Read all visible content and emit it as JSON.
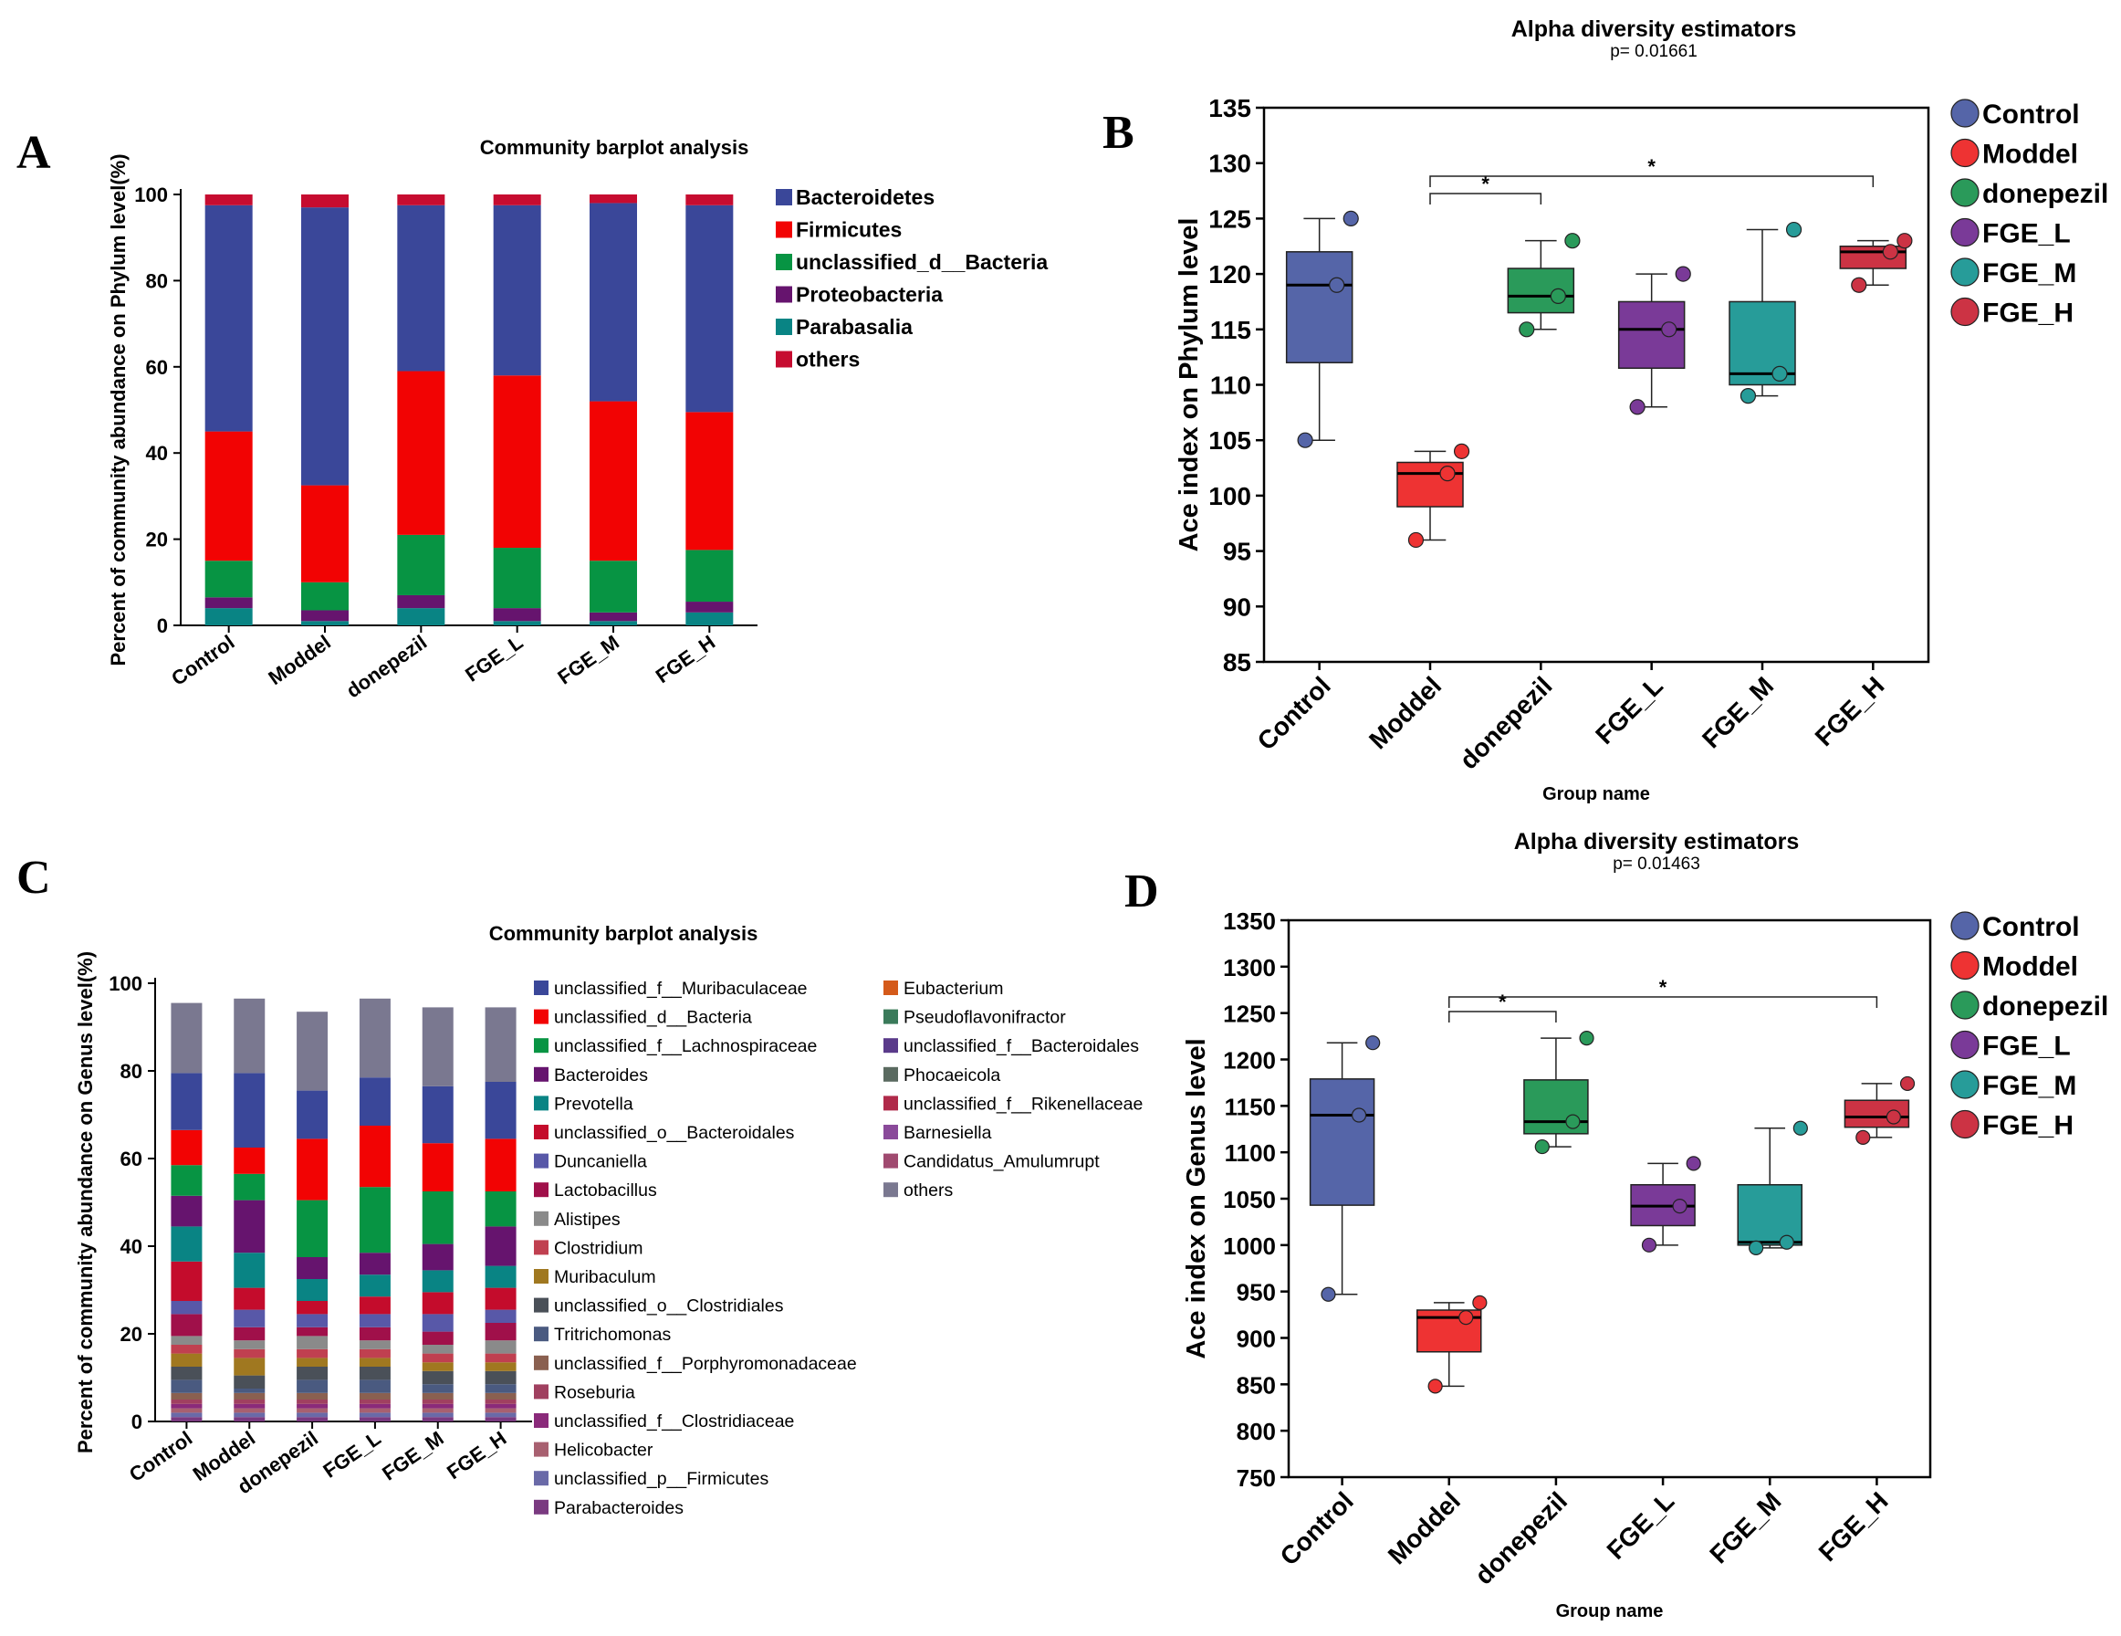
{
  "panels": {
    "A": {
      "letter": "A",
      "chart_data": {
        "type": "bar",
        "stacked": true,
        "title": "Community barplot analysis",
        "xlabel": "",
        "ylabel": "Percent of community abundance on Phylum level(%)",
        "ylim": [
          0,
          100
        ],
        "yticks": [
          "0",
          "20",
          "40",
          "60",
          "80",
          "100"
        ],
        "categories": [
          "Control",
          "Moddel",
          "donepezil",
          "FGE_L",
          "FGE_M",
          "FGE_H"
        ],
        "series": [
          {
            "name": "Parabasalia",
            "color": "#098484",
            "values": [
              4,
              1,
              4,
              1,
              1,
              3
            ]
          },
          {
            "name": "Proteobacteria",
            "color": "#66146e",
            "values": [
              2.5,
              2.5,
              3,
              3,
              2,
              2.5
            ]
          },
          {
            "name": "unclassified_d__Bacteria",
            "color": "#079443",
            "values": [
              8.5,
              6.5,
              14,
              14,
              12,
              12
            ]
          },
          {
            "name": "Firmicutes",
            "color": "#f20303",
            "values": [
              30,
              22.5,
              38,
              40,
              37,
              32
            ]
          },
          {
            "name": "Bacteroidetes",
            "color": "#3a4799",
            "values": [
              52.5,
              64.5,
              38.5,
              39.5,
              46,
              48
            ]
          },
          {
            "name": "others",
            "color": "#c60c30",
            "values": [
              2.5,
              3,
              2.5,
              2.5,
              2,
              2.5
            ]
          }
        ],
        "legend": [
          "Bacteroidetes",
          "Firmicutes",
          "unclassified_d__Bacteria",
          "Proteobacteria",
          "Parabasalia",
          "others"
        ],
        "legend_position": "right"
      }
    },
    "B": {
      "letter": "B",
      "chart_data": {
        "type": "box",
        "title": "Alpha diversity estimators",
        "subtitle": "p= 0.01661",
        "xlabel": "Group name",
        "ylabel": "Ace index on Phylum level",
        "ylim": [
          85,
          135
        ],
        "yticks": [
          "85",
          "90",
          "95",
          "100",
          "105",
          "110",
          "115",
          "120",
          "125",
          "130",
          "135"
        ],
        "categories": [
          "Control",
          "Moddel",
          "donepezil",
          "FGE_L",
          "FGE_M",
          "FGE_H"
        ],
        "boxes": [
          {
            "name": "Control",
            "color": "#5565a8",
            "min": 105,
            "q1": 112,
            "median": 119,
            "q3": 122,
            "max": 125,
            "points": [
              125,
              119,
              105
            ]
          },
          {
            "name": "Moddel",
            "color": "#ee3333",
            "min": 96,
            "q1": 99,
            "median": 102,
            "q3": 103,
            "max": 104,
            "points": [
              104,
              102,
              96
            ]
          },
          {
            "name": "donepezil",
            "color": "#2a9a5a",
            "min": 115,
            "q1": 116.5,
            "median": 118,
            "q3": 120.5,
            "max": 123,
            "points": [
              123,
              118,
              115
            ]
          },
          {
            "name": "FGE_L",
            "color": "#7a3a98",
            "min": 108,
            "q1": 111.5,
            "median": 115,
            "q3": 117.5,
            "max": 120,
            "points": [
              120,
              115,
              108
            ]
          },
          {
            "name": "FGE_M",
            "color": "#279c99",
            "min": 109,
            "q1": 110,
            "median": 111,
            "q3": 117.5,
            "max": 124,
            "points": [
              124,
              111,
              109
            ]
          },
          {
            "name": "FGE_H",
            "color": "#cc3344",
            "min": 119,
            "q1": 120.5,
            "median": 122,
            "q3": 122.5,
            "max": 123,
            "points": [
              123,
              122,
              119
            ]
          }
        ],
        "significance": [
          {
            "from": "Moddel",
            "to": "donepezil",
            "label": "*"
          },
          {
            "from": "Moddel",
            "to": "FGE_H",
            "label": "*"
          }
        ],
        "legend": [
          "Control",
          "Moddel",
          "donepezil",
          "FGE_L",
          "FGE_M",
          "FGE_H"
        ],
        "legend_position": "right"
      }
    },
    "C": {
      "letter": "C",
      "chart_data": {
        "type": "bar",
        "stacked": true,
        "title": "Community barplot analysis",
        "xlabel": "",
        "ylabel": "Percent of community abundance on Genus level(%)",
        "ylim": [
          0,
          100
        ],
        "yticks": [
          "0",
          "20",
          "40",
          "60",
          "80",
          "100"
        ],
        "categories": [
          "Control",
          "Moddel",
          "donepezil",
          "FGE_L",
          "FGE_M",
          "FGE_H"
        ],
        "series": [
          {
            "name": "Parabacteroides",
            "color": "#7a3a80",
            "values": [
              1,
              1,
              1,
              1,
              1,
              1
            ]
          },
          {
            "name": "unclassified_p__Firmicutes",
            "color": "#6a6aa8",
            "values": [
              1,
              1,
              1,
              1,
              1,
              1
            ]
          },
          {
            "name": "Helicobacter",
            "color": "#a86070",
            "values": [
              1,
              1,
              1,
              1,
              1,
              1
            ]
          },
          {
            "name": "unclassified_f__Clostridiaceae",
            "color": "#8a2a7a",
            "values": [
              1,
              1,
              1,
              1,
              1,
              1
            ]
          },
          {
            "name": "Roseburia",
            "color": "#a04060",
            "values": [
              1,
              1,
              1,
              1,
              1,
              1
            ]
          },
          {
            "name": "unclassified_f__Porphyromonadaceae",
            "color": "#8a6050",
            "values": [
              1.5,
              1.5,
              1.5,
              1.5,
              1.5,
              1.5
            ]
          },
          {
            "name": "Tritrichomonas",
            "color": "#4a5a80",
            "values": [
              3,
              1,
              3,
              3,
              2,
              2
            ]
          },
          {
            "name": "unclassified_o__Clostridiales",
            "color": "#4a5058",
            "values": [
              3,
              3,
              3,
              3,
              3,
              3
            ]
          },
          {
            "name": "Muribaculum",
            "color": "#a07820",
            "values": [
              3,
              4,
              2,
              2,
              2,
              2
            ]
          },
          {
            "name": "Clostridium",
            "color": "#c04050",
            "values": [
              2,
              2,
              2,
              2,
              2,
              2
            ]
          },
          {
            "name": "Alistipes",
            "color": "#8a8a8a",
            "values": [
              2,
              2,
              3,
              2,
              2,
              3
            ]
          },
          {
            "name": "Lactobacillus",
            "color": "#a0104a",
            "values": [
              5,
              3,
              2,
              3,
              3,
              4
            ]
          },
          {
            "name": "Duncaniella",
            "color": "#5858a8",
            "values": [
              3,
              4,
              3,
              3,
              4,
              3
            ]
          },
          {
            "name": "unclassified_o__Bacteroidales",
            "color": "#c40c2c",
            "values": [
              9,
              5,
              3,
              4,
              5,
              5
            ]
          },
          {
            "name": "Prevotella",
            "color": "#098484",
            "values": [
              8,
              8,
              5,
              5,
              5,
              5
            ]
          },
          {
            "name": "Bacteroides",
            "color": "#66146e",
            "values": [
              7,
              12,
              5,
              5,
              6,
              9
            ]
          },
          {
            "name": "unclassified_f__Lachnospiraceae",
            "color": "#079443",
            "values": [
              7,
              6,
              13,
              15,
              12,
              8
            ]
          },
          {
            "name": "unclassified_d__Bacteria",
            "color": "#f20303",
            "values": [
              8,
              6,
              14,
              14,
              11,
              12
            ]
          },
          {
            "name": "unclassified_f__Muribaculaceae",
            "color": "#3a4799",
            "values": [
              13,
              17,
              11,
              11,
              13,
              13
            ]
          },
          {
            "name": "others",
            "color": "#7a7890",
            "values": [
              16,
              17,
              18,
              18,
              18,
              17
            ]
          }
        ],
        "legend_col1": [
          "unclassified_f__Muribaculaceae",
          "unclassified_d__Bacteria",
          "unclassified_f__Lachnospiraceae",
          "Bacteroides",
          "Prevotella",
          "unclassified_o__Bacteroidales",
          "Duncaniella",
          "Lactobacillus",
          "Alistipes",
          "Clostridium",
          "Muribaculum",
          "unclassified_o__Clostridiales",
          "Tritrichomonas",
          "unclassified_f__Porphyromonadaceae",
          "Roseburia",
          "unclassified_f__Clostridiaceae",
          "Helicobacter",
          "unclassified_p__Firmicutes",
          "Parabacteroides"
        ],
        "legend_col2": [
          "Eubacterium",
          "Pseudoflavonifractor",
          "unclassified_f__Bacteroidales",
          "Phocaeicola",
          "unclassified_f__Rikenellaceae",
          "Barnesiella",
          "Candidatus_Amulumrupt",
          "others"
        ],
        "legend_colors": {
          "Eubacterium": "#d45a1a",
          "Pseudoflavonifractor": "#3a7a5a",
          "unclassified_f__Bacteroidales": "#5a3a8a",
          "Phocaeicola": "#5a6a60",
          "unclassified_f__Rikenellaceae": "#b02a4a",
          "Barnesiella": "#8a4a9a",
          "Candidatus_Amulumrupt": "#a04a70"
        },
        "legend_position": "right"
      }
    },
    "D": {
      "letter": "D",
      "chart_data": {
        "type": "box",
        "title": "Alpha diversity estimators",
        "subtitle": "p= 0.01463",
        "xlabel": "Group name",
        "ylabel": "Ace index on Genus level",
        "ylim": [
          750,
          1350
        ],
        "yticks": [
          "750",
          "800",
          "850",
          "900",
          "950",
          "1000",
          "1050",
          "1100",
          "1150",
          "1200",
          "1250",
          "1300",
          "1350"
        ],
        "categories": [
          "Control",
          "Moddel",
          "donepezil",
          "FGE_L",
          "FGE_M",
          "FGE_H"
        ],
        "boxes": [
          {
            "name": "Control",
            "color": "#5565a8",
            "min": 947,
            "q1": 1043,
            "median": 1140,
            "q3": 1179,
            "max": 1218,
            "points": [
              1218,
              1140,
              947
            ]
          },
          {
            "name": "Moddel",
            "color": "#ee3333",
            "min": 848,
            "q1": 885,
            "median": 922,
            "q3": 930,
            "max": 938,
            "points": [
              938,
              922,
              848
            ]
          },
          {
            "name": "donepezil",
            "color": "#2a9a5a",
            "min": 1106,
            "q1": 1120,
            "median": 1133,
            "q3": 1178,
            "max": 1223,
            "points": [
              1223,
              1133,
              1106
            ]
          },
          {
            "name": "FGE_L",
            "color": "#7a3a98",
            "min": 1000,
            "q1": 1021,
            "median": 1042,
            "q3": 1065,
            "max": 1088,
            "points": [
              1088,
              1042,
              1000
            ]
          },
          {
            "name": "FGE_M",
            "color": "#279c99",
            "min": 997,
            "q1": 1000,
            "median": 1003,
            "q3": 1065,
            "max": 1126,
            "points": [
              1126,
              1003,
              997
            ]
          },
          {
            "name": "FGE_H",
            "color": "#cc3344",
            "min": 1116,
            "q1": 1127,
            "median": 1138,
            "q3": 1156,
            "max": 1174,
            "points": [
              1174,
              1138,
              1116
            ]
          }
        ],
        "significance": [
          {
            "from": "Moddel",
            "to": "donepezil",
            "label": "*"
          },
          {
            "from": "Moddel",
            "to": "FGE_H",
            "label": "*"
          }
        ],
        "legend": [
          "Control",
          "Moddel",
          "donepezil",
          "FGE_L",
          "FGE_M",
          "FGE_H"
        ],
        "legend_position": "right"
      }
    }
  }
}
